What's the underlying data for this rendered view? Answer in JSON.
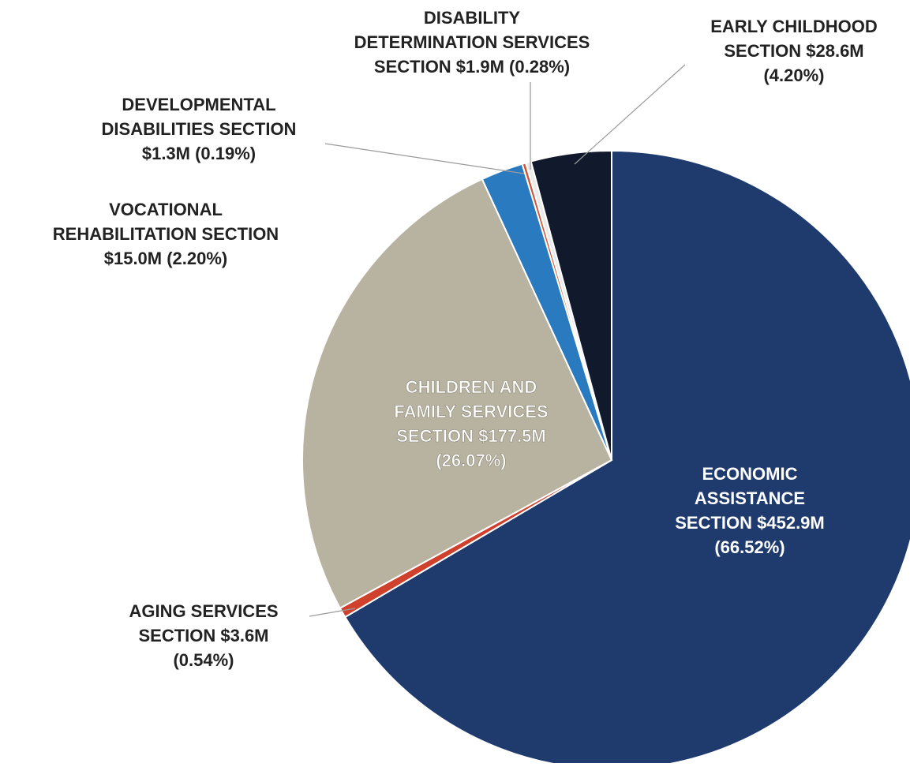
{
  "chart_data": {
    "type": "pie",
    "title": "",
    "start_angle_deg": 0,
    "direction": "clockwise",
    "slices": [
      {
        "name": "ECONOMIC ASSISTANCE SECTION",
        "value": 452.9,
        "percent": 66.52,
        "color": "#1f3a6d",
        "label_lines": [
          "ECONOMIC",
          "ASSISTANCE",
          "SECTION $452.9M",
          "(66.52%)"
        ]
      },
      {
        "name": "AGING SERVICES SECTION",
        "value": 3.6,
        "percent": 0.54,
        "color": "#d0412d",
        "label_lines": [
          "AGING SERVICES",
          "SECTION $3.6M",
          "(0.54%)"
        ]
      },
      {
        "name": "CHILDREN AND FAMILY SERVICES SECTION",
        "value": 177.5,
        "percent": 26.07,
        "color": "#b8b3a0",
        "label_lines": [
          "CHILDREN AND",
          "FAMILY SERVICES",
          "SECTION $177.5M",
          "(26.07%)"
        ]
      },
      {
        "name": "VOCATIONAL REHABILITATION SECTION",
        "value": 15.0,
        "percent": 2.2,
        "color": "#2a7ac0",
        "label_lines": [
          "VOCATIONAL",
          "REHABILITATION SECTION",
          "$15.0M (2.20%)"
        ]
      },
      {
        "name": "DEVELOPMENTAL DISABILITIES SECTION",
        "value": 1.3,
        "percent": 0.19,
        "color": "#d2543c",
        "label_lines": [
          "DEVELOPMENTAL",
          "DISABILITIES SECTION",
          "$1.3M (0.19%)"
        ]
      },
      {
        "name": "DISABILITY DETERMINATION SERVICES SECTION",
        "value": 1.9,
        "percent": 0.28,
        "color": "#eaeaea",
        "label_lines": [
          "DISABILITY",
          "DETERMINATION SERVICES",
          "SECTION $1.9M (0.28%)"
        ]
      },
      {
        "name": "EARLY CHILDHOOD SECTION",
        "value": 28.6,
        "percent": 4.2,
        "color": "#111a2c",
        "label_lines": [
          "EARLY CHILDHOOD",
          "SECTION $28.6M",
          "(4.20%)"
        ]
      }
    ]
  }
}
